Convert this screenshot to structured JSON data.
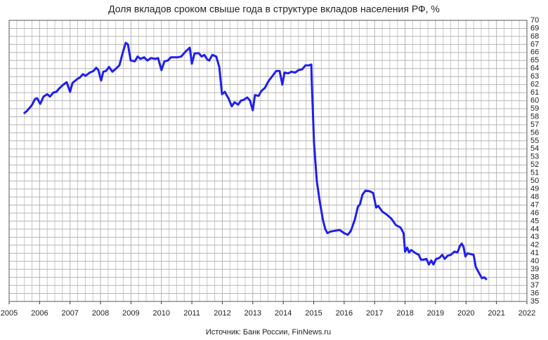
{
  "chart_data": {
    "type": "line",
    "title": "Доля вкладов сроком свыше года в структуре вкладов населения РФ, %",
    "source": "Источник: Банк России, FinNews.ru",
    "series": [
      {
        "name": "Доля вкладов сроком свыше года",
        "color": "#1f1fef",
        "x": [
          2005.48,
          2005.58,
          2005.74,
          2005.85,
          2005.92,
          2006.02,
          2006.13,
          2006.25,
          2006.34,
          2006.45,
          2006.55,
          2006.64,
          2006.78,
          2006.89,
          2007.0,
          2007.08,
          2007.24,
          2007.33,
          2007.42,
          2007.51,
          2007.65,
          2007.77,
          2007.86,
          2007.93,
          2008.02,
          2008.09,
          2008.18,
          2008.28,
          2008.39,
          2008.51,
          2008.62,
          2008.74,
          2008.83,
          2008.9,
          2008.99,
          2009.13,
          2009.22,
          2009.31,
          2009.43,
          2009.54,
          2009.66,
          2009.8,
          2009.89,
          2010.0,
          2010.1,
          2010.21,
          2010.31,
          2010.42,
          2010.54,
          2010.65,
          2010.79,
          2010.93,
          2011.0,
          2011.09,
          2011.23,
          2011.32,
          2011.41,
          2011.51,
          2011.57,
          2011.67,
          2011.8,
          2011.9,
          2011.99,
          2012.08,
          2012.2,
          2012.31,
          2012.4,
          2012.52,
          2012.61,
          2012.7,
          2012.82,
          2012.91,
          2013.0,
          2013.07,
          2013.19,
          2013.28,
          2013.4,
          2013.51,
          2013.65,
          2013.77,
          2013.88,
          2013.97,
          2014.04,
          2014.16,
          2014.27,
          2014.39,
          2014.5,
          2014.62,
          2014.73,
          2014.85,
          2014.92,
          2014.94,
          2015.01,
          2015.1,
          2015.2,
          2015.3,
          2015.38,
          2015.45,
          2015.55,
          2015.7,
          2015.85,
          2016.0,
          2016.12,
          2016.22,
          2016.35,
          2016.45,
          2016.52,
          2016.6,
          2016.7,
          2016.85,
          2016.95,
          2017.05,
          2017.12,
          2017.25,
          2017.4,
          2017.55,
          2017.7,
          2017.85,
          2017.95,
          2018.0,
          2018.07,
          2018.13,
          2018.2,
          2018.35,
          2018.45,
          2018.52,
          2018.6,
          2018.7,
          2018.78,
          2018.86,
          2018.93,
          2019.02,
          2019.12,
          2019.22,
          2019.3,
          2019.4,
          2019.5,
          2019.62,
          2019.72,
          2019.8,
          2019.86,
          2019.92,
          2019.98,
          2020.05,
          2020.15,
          2020.25,
          2020.32,
          2020.42,
          2020.52,
          2020.6,
          2020.68
        ],
        "values": [
          58.4,
          58.7,
          59.4,
          60.2,
          60.3,
          59.6,
          60.5,
          60.8,
          60.5,
          61.0,
          61.1,
          61.5,
          62.0,
          62.3,
          61.1,
          62.2,
          62.7,
          62.9,
          63.3,
          63.1,
          63.5,
          63.7,
          64.1,
          63.8,
          62.5,
          63.6,
          63.7,
          64.2,
          63.6,
          64.0,
          64.4,
          66.1,
          67.2,
          67.0,
          65.0,
          64.9,
          65.5,
          65.2,
          65.4,
          65.0,
          65.3,
          65.2,
          65.3,
          63.8,
          64.9,
          65.0,
          65.4,
          65.4,
          65.4,
          65.5,
          66.1,
          66.6,
          64.6,
          65.9,
          65.9,
          65.5,
          65.7,
          65.1,
          65.0,
          65.7,
          65.5,
          64.2,
          60.8,
          61.1,
          60.3,
          59.3,
          59.8,
          59.5,
          60.0,
          60.1,
          60.4,
          60.0,
          58.8,
          60.7,
          60.6,
          61.2,
          61.6,
          62.4,
          63.1,
          63.7,
          63.7,
          62.0,
          63.5,
          63.4,
          63.6,
          63.5,
          63.8,
          63.9,
          64.4,
          64.4,
          64.5,
          62.0,
          54.7,
          50.0,
          47.4,
          45.2,
          44.0,
          43.5,
          43.7,
          43.8,
          43.9,
          43.5,
          43.3,
          43.8,
          45.2,
          46.8,
          47.1,
          48.3,
          48.8,
          48.7,
          48.5,
          46.7,
          46.9,
          46.2,
          45.8,
          45.3,
          44.5,
          44.2,
          43.5,
          41.2,
          41.7,
          41.1,
          41.4,
          41.0,
          40.8,
          40.2,
          40.2,
          40.3,
          39.6,
          40.1,
          39.6,
          40.3,
          40.4,
          40.8,
          40.3,
          40.7,
          40.8,
          41.2,
          41.1,
          41.9,
          42.2,
          41.8,
          40.6,
          41.0,
          40.9,
          40.8,
          39.3,
          38.6,
          37.9,
          38.0,
          37.7
        ]
      }
    ],
    "xlim": [
      2005,
      2022
    ],
    "xticks": [
      2005,
      2006,
      2007,
      2008,
      2009,
      2010,
      2011,
      2012,
      2013,
      2014,
      2015,
      2016,
      2017,
      2018,
      2019,
      2020,
      2021,
      2022
    ],
    "ylim": [
      35,
      70
    ],
    "yticks": [
      35,
      36,
      37,
      38,
      39,
      40,
      41,
      42,
      43,
      44,
      45,
      46,
      47,
      48,
      49,
      50,
      51,
      52,
      53,
      54,
      55,
      56,
      57,
      58,
      59,
      60,
      61,
      62,
      63,
      64,
      65,
      66,
      67,
      68,
      69,
      70
    ],
    "grid": true
  }
}
